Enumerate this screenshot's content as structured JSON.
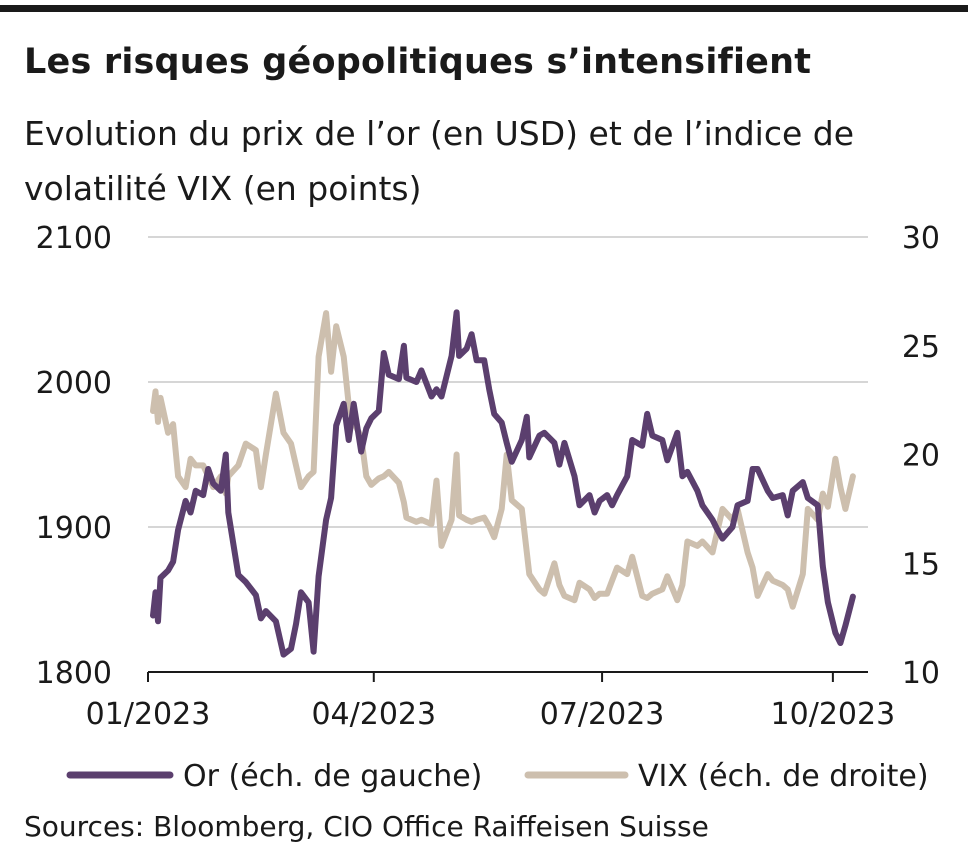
{
  "title": "Les risques géopolitiques s’intensifient",
  "subtitle": "Evolution du prix de l’or (en USD) et de l’indice de volatilité VIX (en points)",
  "source": "Sources: Bloomberg, CIO Office Raiffeisen Suisse",
  "colors": {
    "gold": "#5b3f6e",
    "vix": "#cdbfae",
    "grid": "#c8c8c8",
    "axis": "#1a1a1a"
  },
  "chart_data": {
    "type": "line",
    "x_type": "date",
    "y_left": {
      "ticks": [
        1800,
        1900,
        2000,
        2100
      ],
      "ylim": [
        1800,
        2100
      ]
    },
    "y_right": {
      "ticks": [
        10,
        15,
        20,
        25,
        30
      ],
      "ylim": [
        10,
        30
      ]
    },
    "x_ticks": [
      "01/2023",
      "04/2023",
      "07/2023",
      "10/2023"
    ],
    "grid": true,
    "legend_position": "bottom",
    "series": [
      {
        "name": "Or (éch. de gauche)",
        "axis": "left",
        "color": "#5b3f6e",
        "points": [
          [
            "2023-01-03",
            1839
          ],
          [
            "2023-01-04",
            1855
          ],
          [
            "2023-01-05",
            1835
          ],
          [
            "2023-01-06",
            1865
          ],
          [
            "2023-01-09",
            1870
          ],
          [
            "2023-01-11",
            1876
          ],
          [
            "2023-01-13",
            1898
          ],
          [
            "2023-01-16",
            1918
          ],
          [
            "2023-01-18",
            1910
          ],
          [
            "2023-01-20",
            1925
          ],
          [
            "2023-01-23",
            1922
          ],
          [
            "2023-01-25",
            1940
          ],
          [
            "2023-01-27",
            1930
          ],
          [
            "2023-01-30",
            1925
          ],
          [
            "2023-02-01",
            1950
          ],
          [
            "2023-02-02",
            1910
          ],
          [
            "2023-02-06",
            1867
          ],
          [
            "2023-02-09",
            1862
          ],
          [
            "2023-02-13",
            1853
          ],
          [
            "2023-02-15",
            1837
          ],
          [
            "2023-02-17",
            1842
          ],
          [
            "2023-02-21",
            1835
          ],
          [
            "2023-02-24",
            1812
          ],
          [
            "2023-02-27",
            1816
          ],
          [
            "2023-03-01",
            1833
          ],
          [
            "2023-03-03",
            1855
          ],
          [
            "2023-03-06",
            1848
          ],
          [
            "2023-03-08",
            1814
          ],
          [
            "2023-03-10",
            1866
          ],
          [
            "2023-03-13",
            1905
          ],
          [
            "2023-03-15",
            1920
          ],
          [
            "2023-03-17",
            1970
          ],
          [
            "2023-03-20",
            1985
          ],
          [
            "2023-03-22",
            1960
          ],
          [
            "2023-03-24",
            1985
          ],
          [
            "2023-03-27",
            1952
          ],
          [
            "2023-03-29",
            1968
          ],
          [
            "2023-03-31",
            1975
          ],
          [
            "2023-04-03",
            1980
          ],
          [
            "2023-04-05",
            2020
          ],
          [
            "2023-04-07",
            2005
          ],
          [
            "2023-04-11",
            2002
          ],
          [
            "2023-04-13",
            2025
          ],
          [
            "2023-04-14",
            2003
          ],
          [
            "2023-04-18",
            2000
          ],
          [
            "2023-04-20",
            2008
          ],
          [
            "2023-04-24",
            1990
          ],
          [
            "2023-04-26",
            1995
          ],
          [
            "2023-04-28",
            1990
          ],
          [
            "2023-05-02",
            2018
          ],
          [
            "2023-05-04",
            2048
          ],
          [
            "2023-05-05",
            2018
          ],
          [
            "2023-05-08",
            2023
          ],
          [
            "2023-05-10",
            2033
          ],
          [
            "2023-05-12",
            2015
          ],
          [
            "2023-05-15",
            2015
          ],
          [
            "2023-05-17",
            1995
          ],
          [
            "2023-05-19",
            1978
          ],
          [
            "2023-05-22",
            1972
          ],
          [
            "2023-05-24",
            1958
          ],
          [
            "2023-05-26",
            1945
          ],
          [
            "2023-05-30",
            1960
          ],
          [
            "2023-06-01",
            1976
          ],
          [
            "2023-06-02",
            1948
          ],
          [
            "2023-06-06",
            1963
          ],
          [
            "2023-06-08",
            1965
          ],
          [
            "2023-06-12",
            1958
          ],
          [
            "2023-06-14",
            1943
          ],
          [
            "2023-06-16",
            1958
          ],
          [
            "2023-06-20",
            1935
          ],
          [
            "2023-06-22",
            1915
          ],
          [
            "2023-06-26",
            1922
          ],
          [
            "2023-06-28",
            1910
          ],
          [
            "2023-06-30",
            1918
          ],
          [
            "2023-07-03",
            1922
          ],
          [
            "2023-07-05",
            1915
          ],
          [
            "2023-07-07",
            1922
          ],
          [
            "2023-07-11",
            1935
          ],
          [
            "2023-07-13",
            1960
          ],
          [
            "2023-07-17",
            1956
          ],
          [
            "2023-07-19",
            1978
          ],
          [
            "2023-07-21",
            1963
          ],
          [
            "2023-07-25",
            1960
          ],
          [
            "2023-07-27",
            1946
          ],
          [
            "2023-07-31",
            1965
          ],
          [
            "2023-08-02",
            1935
          ],
          [
            "2023-08-04",
            1938
          ],
          [
            "2023-08-08",
            1925
          ],
          [
            "2023-08-10",
            1915
          ],
          [
            "2023-08-14",
            1905
          ],
          [
            "2023-08-16",
            1898
          ],
          [
            "2023-08-18",
            1892
          ],
          [
            "2023-08-22",
            1900
          ],
          [
            "2023-08-24",
            1915
          ],
          [
            "2023-08-28",
            1918
          ],
          [
            "2023-08-30",
            1940
          ],
          [
            "2023-09-01",
            1940
          ],
          [
            "2023-09-05",
            1925
          ],
          [
            "2023-09-07",
            1920
          ],
          [
            "2023-09-11",
            1922
          ],
          [
            "2023-09-13",
            1908
          ],
          [
            "2023-09-15",
            1925
          ],
          [
            "2023-09-19",
            1931
          ],
          [
            "2023-09-21",
            1920
          ],
          [
            "2023-09-25",
            1915
          ],
          [
            "2023-09-27",
            1873
          ],
          [
            "2023-09-29",
            1848
          ],
          [
            "2023-10-02",
            1827
          ],
          [
            "2023-10-04",
            1820
          ],
          [
            "2023-10-06",
            1832
          ],
          [
            "2023-10-09",
            1852
          ]
        ]
      },
      {
        "name": "VIX (éch. de droite)",
        "axis": "right",
        "color": "#cdbfae",
        "points": [
          [
            "2023-01-03",
            22.0
          ],
          [
            "2023-01-04",
            22.9
          ],
          [
            "2023-01-05",
            21.5
          ],
          [
            "2023-01-06",
            22.6
          ],
          [
            "2023-01-09",
            21.0
          ],
          [
            "2023-01-11",
            21.4
          ],
          [
            "2023-01-13",
            19.0
          ],
          [
            "2023-01-16",
            18.5
          ],
          [
            "2023-01-18",
            19.8
          ],
          [
            "2023-01-20",
            19.5
          ],
          [
            "2023-01-23",
            19.5
          ],
          [
            "2023-01-25",
            19.0
          ],
          [
            "2023-01-27",
            18.5
          ],
          [
            "2023-01-30",
            19.0
          ],
          [
            "2023-02-01",
            18.2
          ],
          [
            "2023-02-02",
            19.0
          ],
          [
            "2023-02-06",
            19.5
          ],
          [
            "2023-02-09",
            20.5
          ],
          [
            "2023-02-13",
            20.2
          ],
          [
            "2023-02-15",
            18.5
          ],
          [
            "2023-02-17",
            20.0
          ],
          [
            "2023-02-21",
            22.8
          ],
          [
            "2023-02-24",
            21.0
          ],
          [
            "2023-02-27",
            20.5
          ],
          [
            "2023-03-01",
            19.5
          ],
          [
            "2023-03-03",
            18.5
          ],
          [
            "2023-03-06",
            19.0
          ],
          [
            "2023-03-08",
            19.2
          ],
          [
            "2023-03-10",
            24.5
          ],
          [
            "2023-03-13",
            26.5
          ],
          [
            "2023-03-15",
            23.8
          ],
          [
            "2023-03-17",
            25.9
          ],
          [
            "2023-03-20",
            24.5
          ],
          [
            "2023-03-22",
            22.3
          ],
          [
            "2023-03-24",
            21.5
          ],
          [
            "2023-03-27",
            20.8
          ],
          [
            "2023-03-29",
            19.0
          ],
          [
            "2023-03-31",
            18.6
          ],
          [
            "2023-04-03",
            18.9
          ],
          [
            "2023-04-05",
            19.0
          ],
          [
            "2023-04-07",
            19.2
          ],
          [
            "2023-04-11",
            18.7
          ],
          [
            "2023-04-13",
            17.8
          ],
          [
            "2023-04-14",
            17.1
          ],
          [
            "2023-04-18",
            16.9
          ],
          [
            "2023-04-20",
            17.0
          ],
          [
            "2023-04-24",
            16.8
          ],
          [
            "2023-04-26",
            18.8
          ],
          [
            "2023-04-28",
            15.8
          ],
          [
            "2023-05-02",
            17.0
          ],
          [
            "2023-05-04",
            20.0
          ],
          [
            "2023-05-05",
            17.2
          ],
          [
            "2023-05-08",
            17.0
          ],
          [
            "2023-05-10",
            16.9
          ],
          [
            "2023-05-12",
            17.0
          ],
          [
            "2023-05-15",
            17.1
          ],
          [
            "2023-05-17",
            16.7
          ],
          [
            "2023-05-19",
            16.2
          ],
          [
            "2023-05-22",
            17.5
          ],
          [
            "2023-05-24",
            20.0
          ],
          [
            "2023-05-26",
            17.9
          ],
          [
            "2023-05-30",
            17.5
          ],
          [
            "2023-06-01",
            15.5
          ],
          [
            "2023-06-02",
            14.5
          ],
          [
            "2023-06-06",
            13.8
          ],
          [
            "2023-06-08",
            13.6
          ],
          [
            "2023-06-12",
            15.0
          ],
          [
            "2023-06-14",
            14.0
          ],
          [
            "2023-06-16",
            13.5
          ],
          [
            "2023-06-20",
            13.3
          ],
          [
            "2023-06-22",
            14.1
          ],
          [
            "2023-06-26",
            13.8
          ],
          [
            "2023-06-28",
            13.4
          ],
          [
            "2023-06-30",
            13.6
          ],
          [
            "2023-07-03",
            13.6
          ],
          [
            "2023-07-05",
            14.2
          ],
          [
            "2023-07-07",
            14.8
          ],
          [
            "2023-07-11",
            14.5
          ],
          [
            "2023-07-13",
            15.3
          ],
          [
            "2023-07-17",
            13.5
          ],
          [
            "2023-07-19",
            13.4
          ],
          [
            "2023-07-21",
            13.6
          ],
          [
            "2023-07-25",
            13.8
          ],
          [
            "2023-07-27",
            14.4
          ],
          [
            "2023-07-31",
            13.3
          ],
          [
            "2023-08-02",
            14.0
          ],
          [
            "2023-08-04",
            16.0
          ],
          [
            "2023-08-08",
            15.8
          ],
          [
            "2023-08-10",
            16.0
          ],
          [
            "2023-08-14",
            15.5
          ],
          [
            "2023-08-16",
            16.5
          ],
          [
            "2023-08-18",
            17.5
          ],
          [
            "2023-08-22",
            17.0
          ],
          [
            "2023-08-24",
            17.5
          ],
          [
            "2023-08-28",
            15.5
          ],
          [
            "2023-08-30",
            14.8
          ],
          [
            "2023-09-01",
            13.5
          ],
          [
            "2023-09-05",
            14.5
          ],
          [
            "2023-09-07",
            14.2
          ],
          [
            "2023-09-11",
            14.0
          ],
          [
            "2023-09-13",
            13.8
          ],
          [
            "2023-09-15",
            13.0
          ],
          [
            "2023-09-19",
            14.5
          ],
          [
            "2023-09-21",
            17.5
          ],
          [
            "2023-09-25",
            17.0
          ],
          [
            "2023-09-27",
            18.2
          ],
          [
            "2023-09-29",
            17.6
          ],
          [
            "2023-10-02",
            19.8
          ],
          [
            "2023-10-04",
            18.5
          ],
          [
            "2023-10-06",
            17.5
          ],
          [
            "2023-10-09",
            19.0
          ]
        ]
      }
    ]
  }
}
